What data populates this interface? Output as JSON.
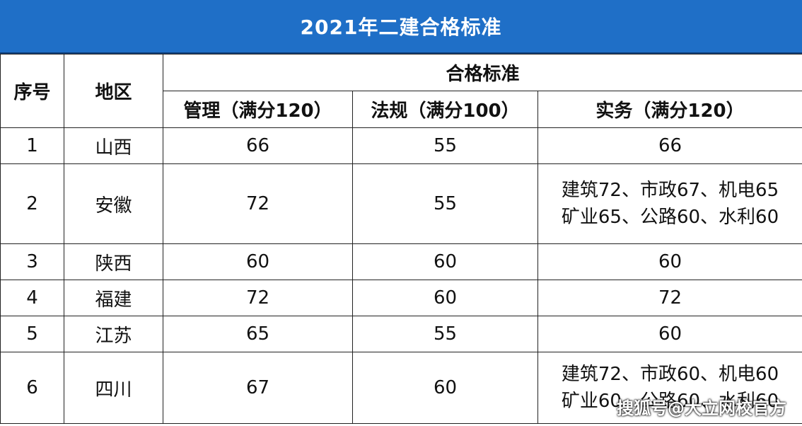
{
  "title": "2021年二建合格标准",
  "headers": {
    "seq": "序号",
    "region": "地区",
    "group": "合格标准",
    "mgmt": "管理（满分120）",
    "law": "法规（满分100）",
    "practice": "实务（满分120）"
  },
  "rows": [
    {
      "seq": "1",
      "region": "山西",
      "mgmt": "66",
      "law": "55",
      "practice": [
        "66"
      ]
    },
    {
      "seq": "2",
      "region": "安徽",
      "mgmt": "72",
      "law": "55",
      "practice": [
        "建筑72、市政67、机电65",
        "矿业65、公路60、水利60"
      ]
    },
    {
      "seq": "3",
      "region": "陕西",
      "mgmt": "60",
      "law": "60",
      "practice": [
        "60"
      ]
    },
    {
      "seq": "4",
      "region": "福建",
      "mgmt": "72",
      "law": "60",
      "practice": [
        "72"
      ]
    },
    {
      "seq": "5",
      "region": "江苏",
      "mgmt": "65",
      "law": "55",
      "practice": [
        "60"
      ]
    },
    {
      "seq": "6",
      "region": "四川",
      "mgmt": "67",
      "law": "60",
      "practice": [
        "建筑72、市政60、机电60",
        "矿业60、公路60、水利60"
      ]
    }
  ],
  "watermark": "搜狐号@大立网校官方"
}
